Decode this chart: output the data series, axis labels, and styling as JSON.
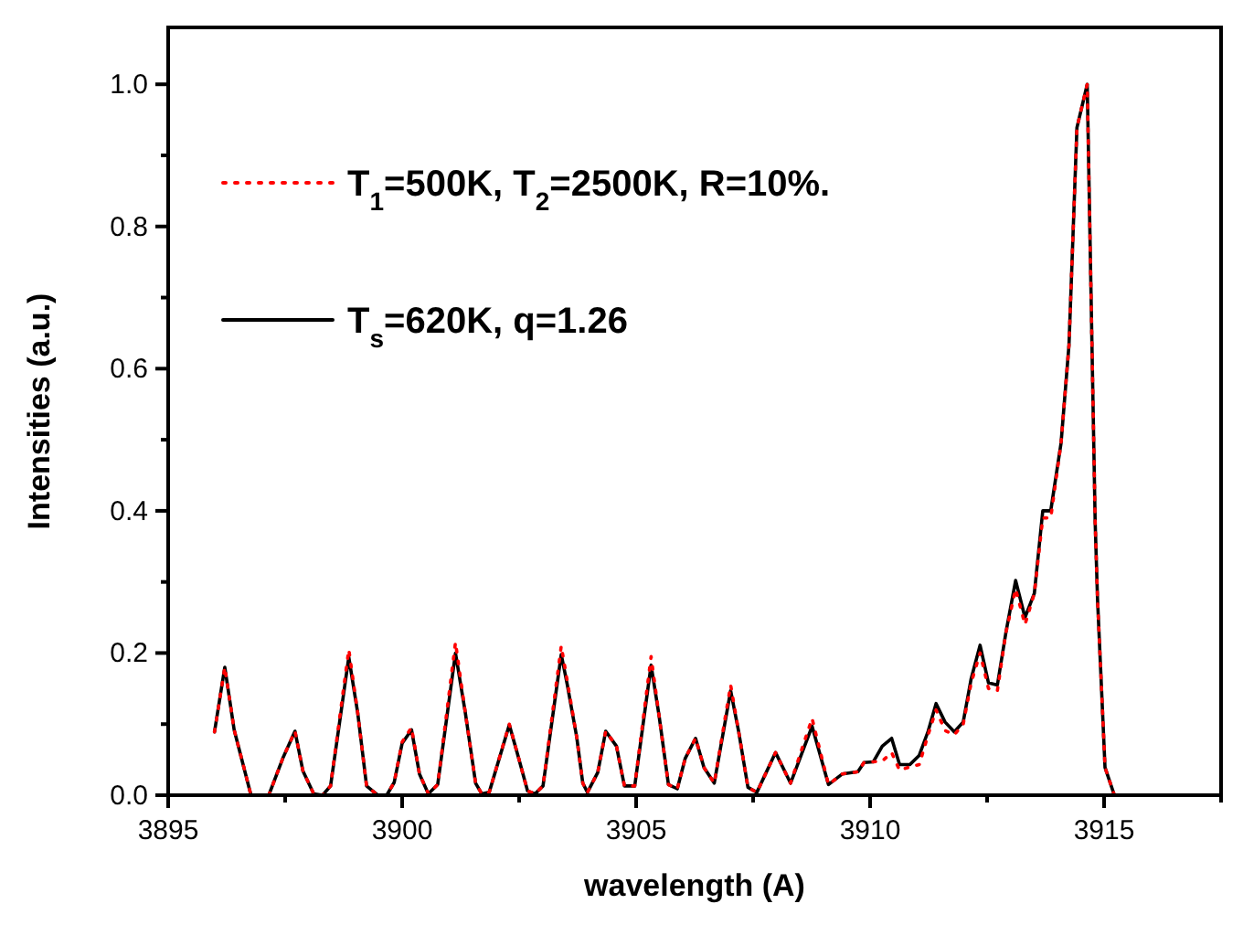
{
  "chart_data": {
    "type": "line",
    "xlabel": "wavelength (A)",
    "ylabel": "Intensities (a.u.)",
    "xlim": [
      3895,
      3917.5
    ],
    "ylim": [
      0,
      1.08
    ],
    "xticks": [
      3895,
      {
        "value": 3897.5,
        "label": null
      },
      3900,
      {
        "value": 3902.5,
        "label": null
      },
      3905,
      {
        "value": 3907.5,
        "label": null
      },
      3910,
      {
        "value": 3912.5,
        "label": null
      },
      3915,
      {
        "value": 3917.5,
        "label": null
      }
    ],
    "yticks": [
      {
        "value": 0,
        "label": "0.0"
      },
      {
        "value": 0.1,
        "label": null
      },
      0.2,
      {
        "value": 0.3,
        "label": null
      },
      0.4,
      {
        "value": 0.5,
        "label": null
      },
      0.6,
      {
        "value": 0.7,
        "label": null
      },
      0.8,
      {
        "value": 0.9,
        "label": null
      },
      {
        "value": 1,
        "label": "1.0"
      }
    ],
    "legend": "top left",
    "grid": false,
    "marker": "none",
    "x": [
      3895.99,
      3896.21,
      3896.41,
      3896.77,
      3897.15,
      3897.45,
      3897.71,
      3897.88,
      3898.11,
      3898.3,
      3898.47,
      3898.86,
      3899.05,
      3899.24,
      3899.48,
      3899.67,
      3899.83,
      3900,
      3900.2,
      3900.37,
      3900.56,
      3900.76,
      3901.14,
      3901.35,
      3901.57,
      3901.7,
      3901.86,
      3902.29,
      3902.49,
      3902.68,
      3902.84,
      3903.01,
      3903.4,
      3903.53,
      3903.73,
      3903.86,
      3903.96,
      3904.18,
      3904.35,
      3904.58,
      3904.75,
      3904.97,
      3905.32,
      3905.49,
      3905.69,
      3905.88,
      3906.05,
      3906.27,
      3906.45,
      3906.67,
      3907.02,
      3907.19,
      3907.39,
      3907.58,
      3907.98,
      3908.3,
      3908.76,
      3909.11,
      3909.41,
      3909.74,
      3909.87,
      3910.07,
      3910.26,
      3910.46,
      3910.63,
      3910.85,
      3911.05,
      3911.24,
      3911.41,
      3911.6,
      3911.8,
      3911.99,
      3912.16,
      3912.35,
      3912.53,
      3912.72,
      3912.9,
      3913.11,
      3913.31,
      3913.51,
      3913.69,
      3913.86,
      3914.08,
      3914.25,
      3914.42,
      3914.64,
      3914.81,
      3914.86,
      3915.02,
      3915.22
    ],
    "series": [
      {
        "name": "T$_{1}$=500K, T$_{2}$=2500K, R=10%.",
        "color": "#ff0000",
        "line_style": "dotted",
        "values": [
          0.089,
          0.18,
          0.092,
          0,
          0,
          0.052,
          0.09,
          0.034,
          0.002,
          0,
          0.013,
          0.205,
          0.116,
          0.013,
          0,
          0,
          0.018,
          0.075,
          0.095,
          0.03,
          0.002,
          0.015,
          0.215,
          0.116,
          0.017,
          0.002,
          0.004,
          0.1,
          0.052,
          0.006,
          0.002,
          0.013,
          0.21,
          0.16,
          0.082,
          0.017,
          0.004,
          0.032,
          0.09,
          0.069,
          0.013,
          0.013,
          0.195,
          0.112,
          0.015,
          0.009,
          0.052,
          0.08,
          0.039,
          0.017,
          0.155,
          0.09,
          0.011,
          0.004,
          0.06,
          0.017,
          0.108,
          0.015,
          0.03,
          0.033,
          0.046,
          0.047,
          0.048,
          0.06,
          0.035,
          0.04,
          0.043,
          0.085,
          0.12,
          0.091,
          0.085,
          0.1,
          0.158,
          0.2,
          0.15,
          0.147,
          0.228,
          0.29,
          0.24,
          0.284,
          0.39,
          0.39,
          0.495,
          0.633,
          0.939,
          1.0,
          0.383,
          0.276,
          0.039,
          0
        ]
      },
      {
        "name": "T$_{s}$=620K, q=1.26",
        "color": "#000000",
        "line_style": "solid",
        "values": [
          0.089,
          0.18,
          0.092,
          0,
          0,
          0.052,
          0.09,
          0.034,
          0.002,
          0,
          0.013,
          0.194,
          0.116,
          0.013,
          0,
          0,
          0.018,
          0.073,
          0.092,
          0.03,
          0.002,
          0.015,
          0.2,
          0.116,
          0.017,
          0.002,
          0.004,
          0.099,
          0.052,
          0.006,
          0.002,
          0.013,
          0.198,
          0.155,
          0.082,
          0.017,
          0.004,
          0.032,
          0.09,
          0.069,
          0.013,
          0.013,
          0.183,
          0.112,
          0.015,
          0.009,
          0.052,
          0.08,
          0.039,
          0.017,
          0.147,
          0.09,
          0.011,
          0.004,
          0.06,
          0.017,
          0.097,
          0.015,
          0.03,
          0.033,
          0.046,
          0.047,
          0.069,
          0.08,
          0.043,
          0.043,
          0.056,
          0.09,
          0.129,
          0.103,
          0.089,
          0.103,
          0.164,
          0.211,
          0.158,
          0.155,
          0.228,
          0.302,
          0.25,
          0.284,
          0.4,
          0.4,
          0.495,
          0.633,
          0.939,
          1.0,
          0.383,
          0.276,
          0.039,
          0
        ]
      }
    ]
  }
}
